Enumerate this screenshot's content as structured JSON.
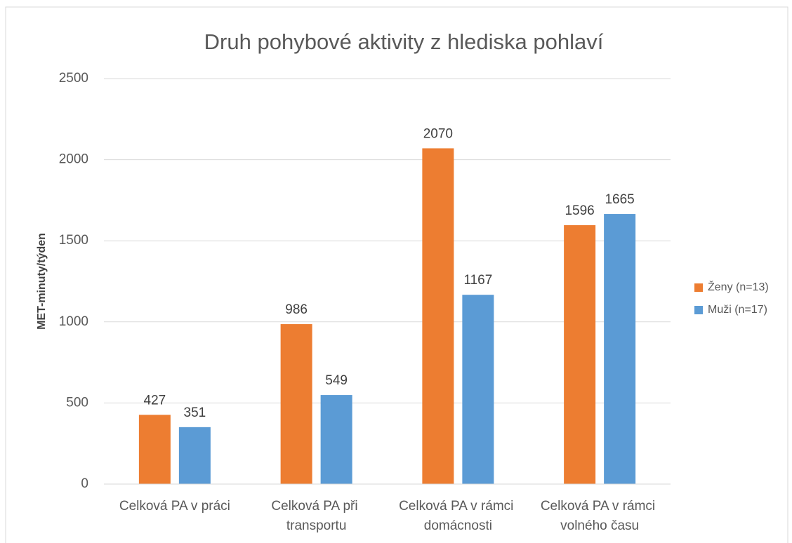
{
  "chart_data": {
    "type": "bar",
    "title": "Druh pohybové aktivity z hlediska pohlaví",
    "y_label": "MET-minuty/týden",
    "categories": [
      "Celková PA v práci",
      "Celková PA při transportu",
      "Celková PA v rámci domácnosti",
      "Celková PA v rámci volného času"
    ],
    "series": [
      {
        "name": "Ženy (n=13)",
        "color": "#ed7d31",
        "values": [
          427,
          986,
          2070,
          1596
        ]
      },
      {
        "name": "Muži (n=17)",
        "color": "#5b9bd5",
        "values": [
          351,
          549,
          1167,
          1665
        ]
      }
    ],
    "ylim": [
      0,
      2500
    ],
    "yticks": [
      0,
      500,
      1000,
      1500,
      2000,
      2500
    ],
    "grid": true,
    "legend": "right"
  }
}
